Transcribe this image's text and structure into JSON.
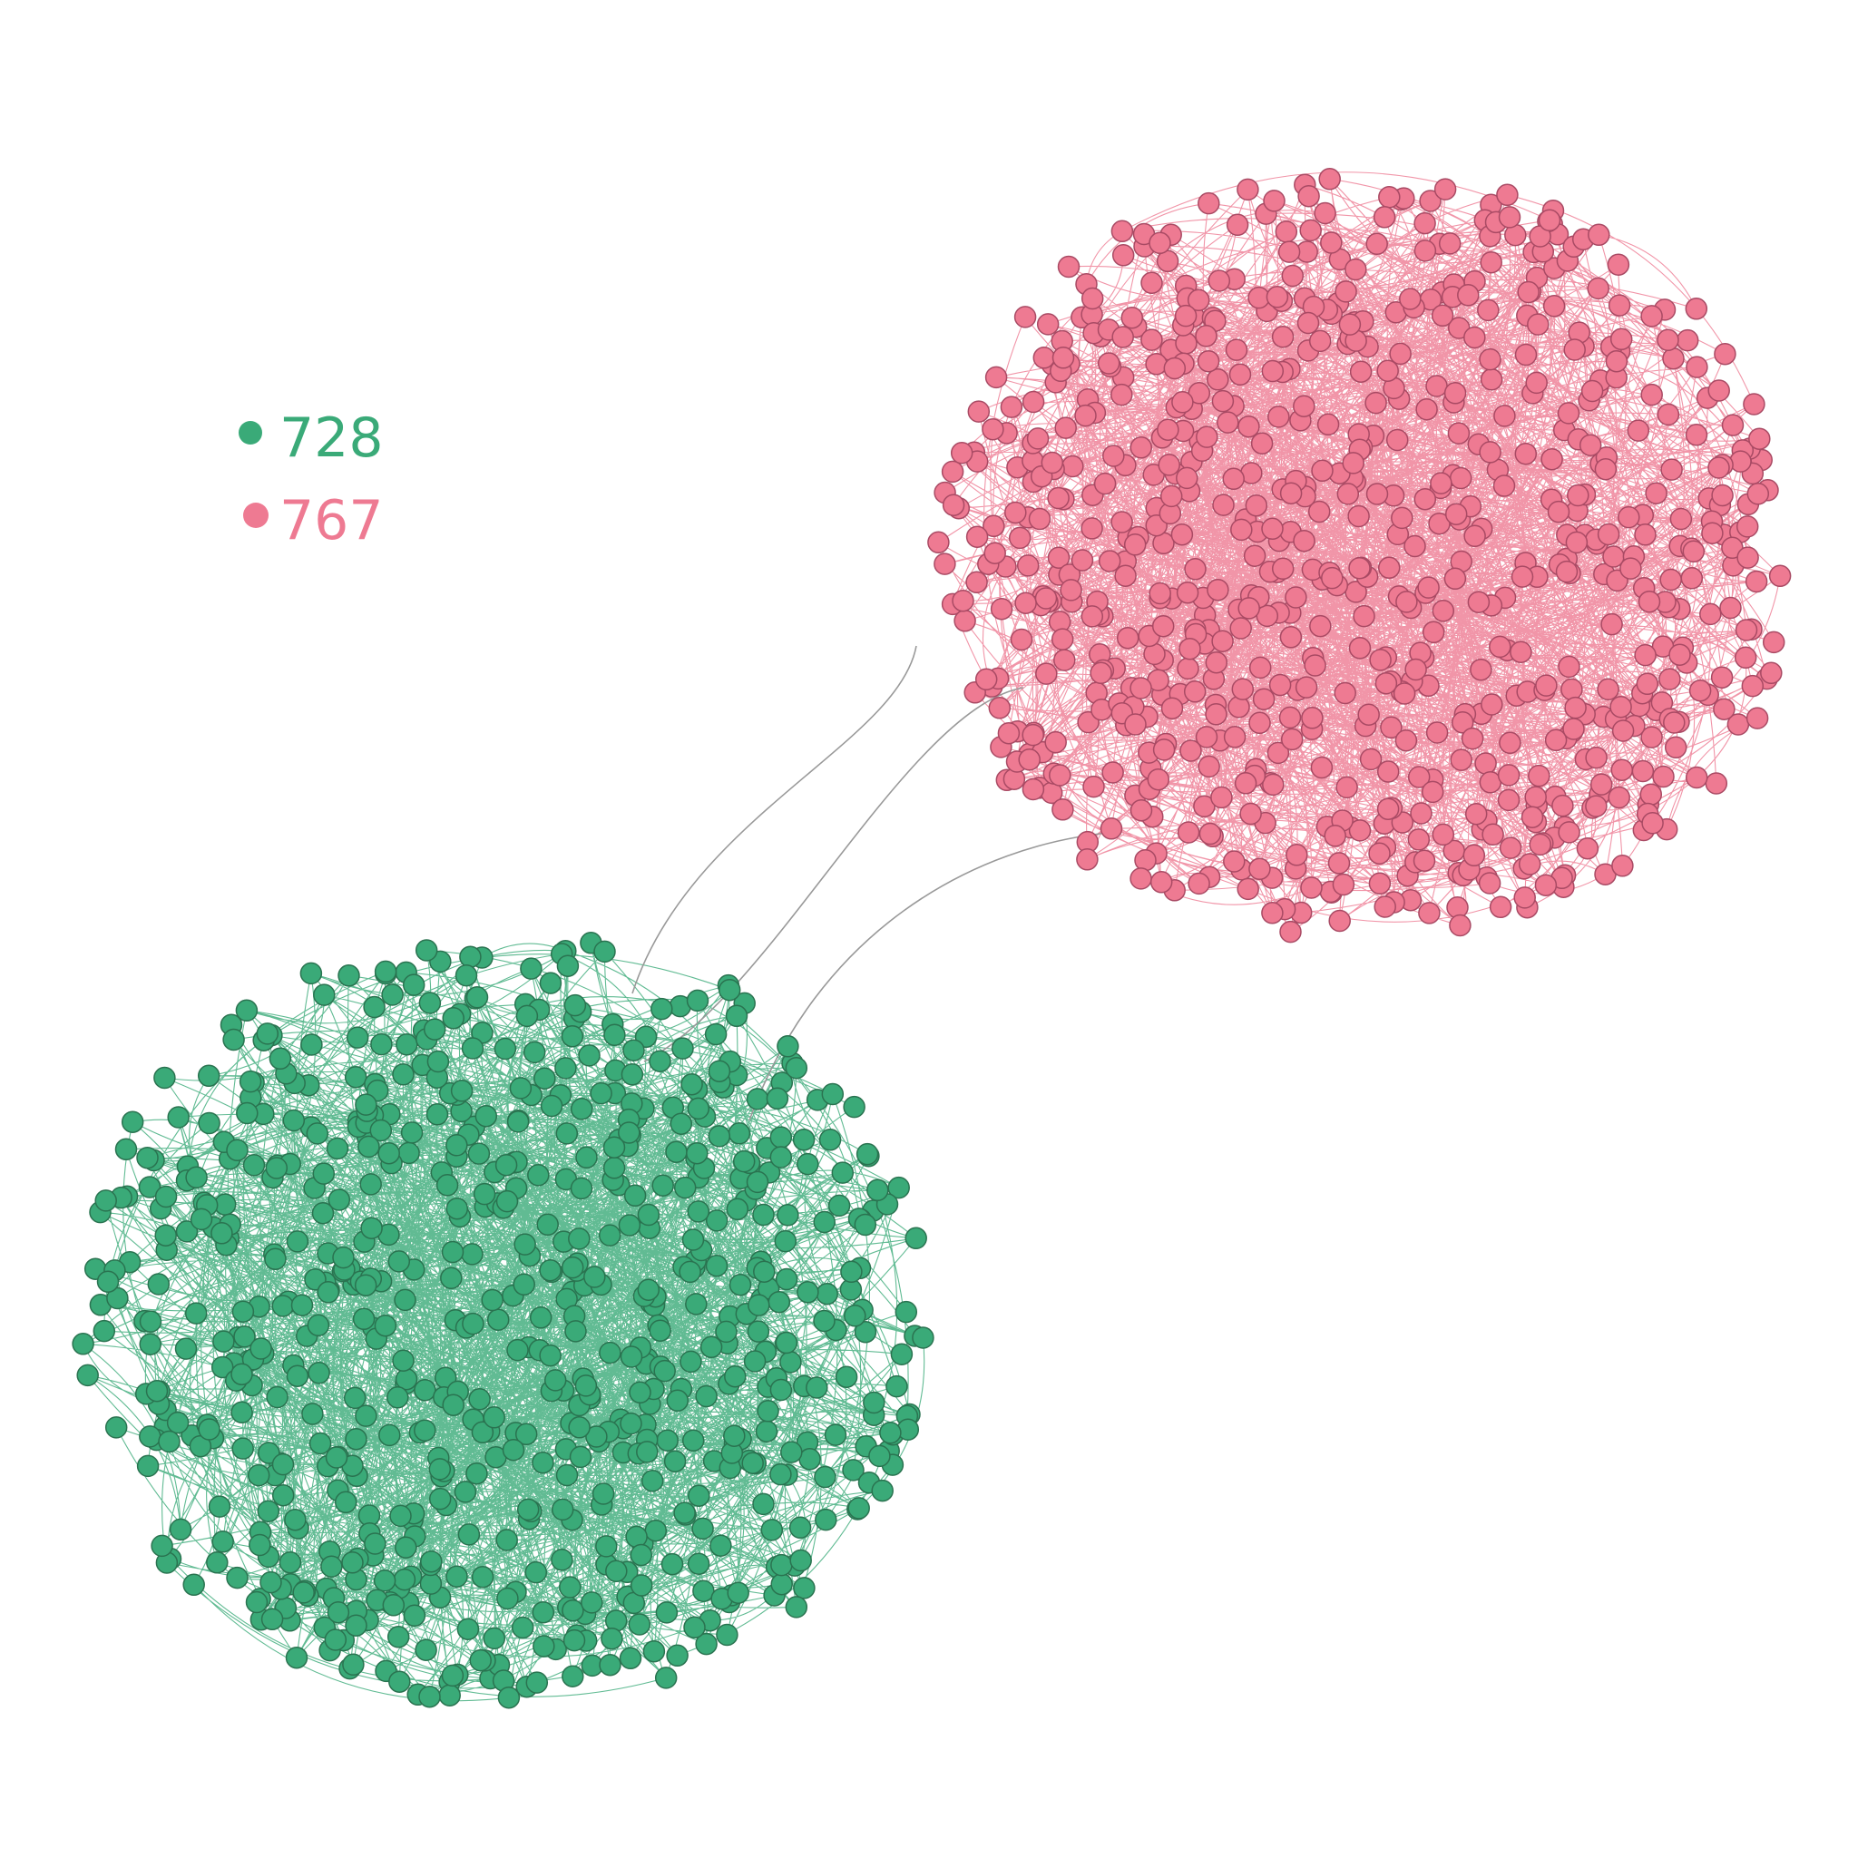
{
  "legend": {
    "items": [
      {
        "label": "728",
        "color": "#3aaa78",
        "node_count": 728
      },
      {
        "label": "767",
        "color": "#ee7a92",
        "node_count": 767
      }
    ]
  },
  "clusters": [
    {
      "name": "green",
      "node_count": 728,
      "fill": "#3aaa78",
      "stroke": "#2a7350",
      "edge_color": "#3aaa78"
    },
    {
      "name": "pink",
      "node_count": 767,
      "fill": "#ee7a92",
      "stroke": "#a94a64",
      "edge_color": "#ee7a92"
    }
  ],
  "inter_cluster_edges": {
    "count": 3,
    "color": "#999999"
  }
}
